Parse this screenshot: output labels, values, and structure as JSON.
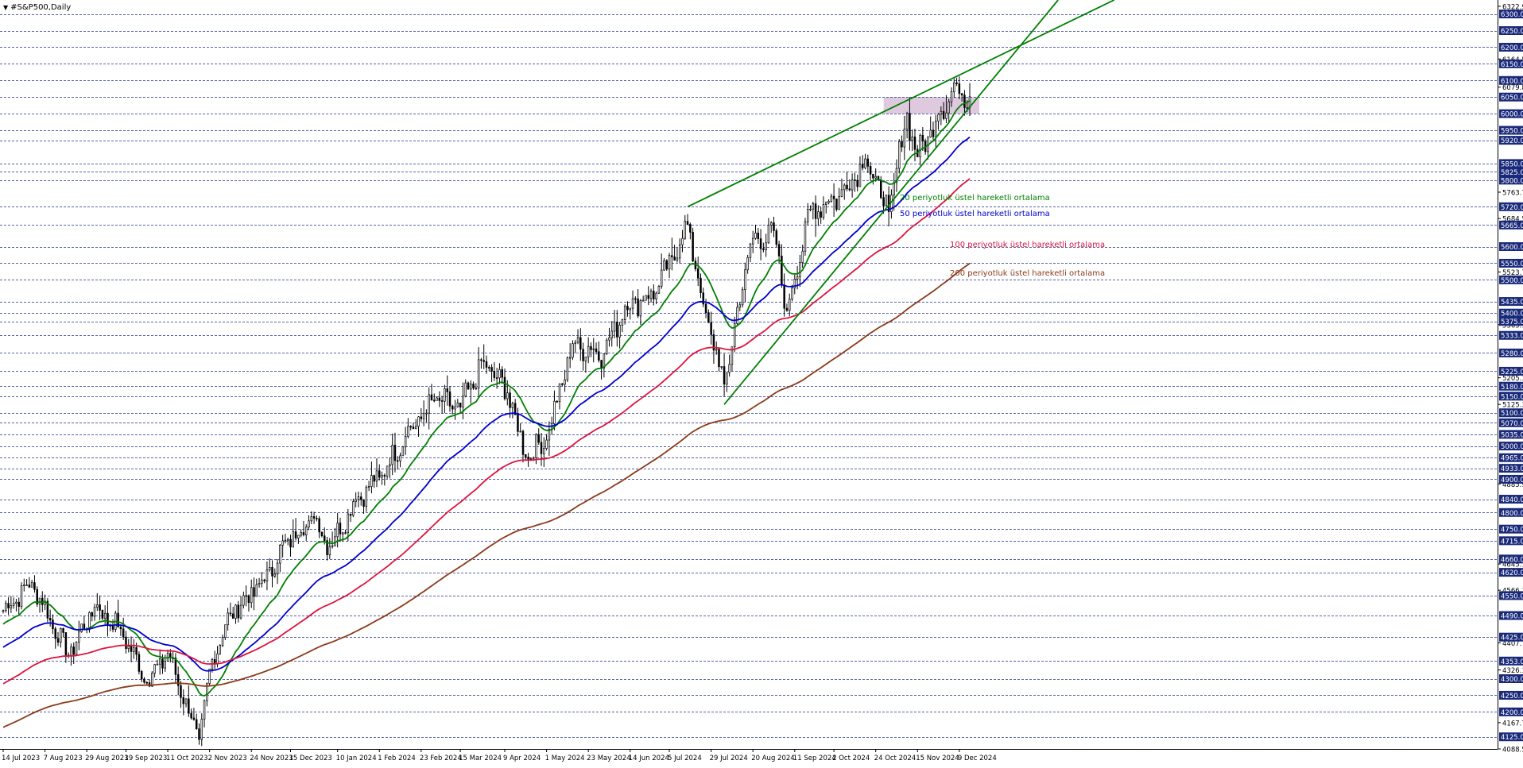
{
  "window": {
    "symbol_title": "#S&P500,Daily",
    "menu_icon": "triangle-down-icon"
  },
  "colors": {
    "background": "#ffffff",
    "grid": "#1f2f8f",
    "axis": "#000000",
    "candle": "#000000",
    "ema20": "#008000",
    "ema50": "#0000cd",
    "ema100": "#dc143c",
    "ema200": "#8b3a1a",
    "trendline": "#008000",
    "resistance_zone": "#d8bfd8",
    "price_box_bg": "#1a2a7a",
    "price_box_text": "#ffffff"
  },
  "chart_data": {
    "type": "candlestick",
    "symbol": "#S&P500",
    "timeframe": "Daily",
    "ylim": [
      4088.53,
      6322.93
    ],
    "grid": "horizontal-dashed",
    "x_ticks": [
      "14 Jul 2023",
      "7 Aug 2023",
      "29 Aug 2023",
      "19 Sep 2023",
      "11 Oct 2023",
      "2 Nov 2023",
      "24 Nov 2023",
      "15 Dec 2023",
      "10 Jan 2024",
      "1 Feb 2024",
      "23 Feb 2024",
      "15 Mar 2024",
      "9 Apr 2024",
      "1 May 2024",
      "23 May 2024",
      "14 Jun 2024",
      "5 Jul 2024",
      "29 Jul 2024",
      "20 Aug 2024",
      "11 Sep 2024",
      "2 Oct 2024",
      "24 Oct 2024",
      "15 Nov 2024",
      "9 Dec 2024"
    ],
    "y_ticks_plain": [
      "6322.93",
      "6164.53",
      "6079.82",
      "5763.73",
      "5684.53",
      "5523.73",
      "5365.13",
      "5205.33",
      "5125.33",
      "4885.93",
      "4645.13",
      "4566.13",
      "4407.73",
      "4326.13",
      "4167.73",
      "4088.53"
    ],
    "y_levels_boxed": [
      "6300.00",
      "6250.00",
      "6200.00",
      "6150.00",
      "6100.00",
      "6050.00",
      "6000.00",
      "5950.00",
      "5920.00",
      "5850.00",
      "5825.00",
      "5800.00",
      "5720.00",
      "5665.00",
      "5600.00",
      "5550.00",
      "5500.00",
      "5435.00",
      "5400.00",
      "5375.00",
      "5333.00",
      "5280.00",
      "5225.00",
      "5180.00",
      "5150.00",
      "5100.00",
      "5070.00",
      "5035.00",
      "5000.00",
      "4965.00",
      "4933.00",
      "4900.00",
      "4840.00",
      "4800.00",
      "4750.00",
      "4715.00",
      "4660.00",
      "4620.00",
      "4550.00",
      "4490.00",
      "4425.00",
      "4353.00",
      "4300.00",
      "4250.00",
      "4200.00",
      "4125.00"
    ],
    "closes_anchor": [
      {
        "date": "14 Jul 2023",
        "close": 4505
      },
      {
        "date": "31 Jul 2023",
        "close": 4589
      },
      {
        "date": "18 Aug 2023",
        "close": 4370
      },
      {
        "date": "1 Sep 2023",
        "close": 4515
      },
      {
        "date": "15 Sep 2023",
        "close": 4450
      },
      {
        "date": "29 Sep 2023",
        "close": 4288
      },
      {
        "date": "11 Oct 2023",
        "close": 4376
      },
      {
        "date": "27 Oct 2023",
        "close": 4117
      },
      {
        "date": "3 Nov 2023",
        "close": 4358
      },
      {
        "date": "14 Nov 2023",
        "close": 4495
      },
      {
        "date": "1 Dec 2023",
        "close": 4594
      },
      {
        "date": "14 Dec 2023",
        "close": 4719
      },
      {
        "date": "28 Dec 2023",
        "close": 4783
      },
      {
        "date": "5 Jan 2024",
        "close": 4697
      },
      {
        "date": "19 Jan 2024",
        "close": 4839
      },
      {
        "date": "1 Feb 2024",
        "close": 4906
      },
      {
        "date": "15 Feb 2024",
        "close": 5029
      },
      {
        "date": "1 Mar 2024",
        "close": 5137
      },
      {
        "date": "15 Mar 2024",
        "close": 5117
      },
      {
        "date": "28 Mar 2024",
        "close": 5254
      },
      {
        "date": "10 Apr 2024",
        "close": 5160
      },
      {
        "date": "19 Apr 2024",
        "close": 4967
      },
      {
        "date": "1 May 2024",
        "close": 5018
      },
      {
        "date": "15 May 2024",
        "close": 5308
      },
      {
        "date": "31 May 2024",
        "close": 5277
      },
      {
        "date": "12 Jun 2024",
        "close": 5421
      },
      {
        "date": "28 Jun 2024",
        "close": 5460
      },
      {
        "date": "16 Jul 2024",
        "close": 5667
      },
      {
        "date": "24 Jul 2024",
        "close": 5427
      },
      {
        "date": "5 Aug 2024",
        "close": 5186
      },
      {
        "date": "19 Aug 2024",
        "close": 5608
      },
      {
        "date": "30 Aug 2024",
        "close": 5648
      },
      {
        "date": "6 Sep 2024",
        "close": 5408
      },
      {
        "date": "19 Sep 2024",
        "close": 5713
      },
      {
        "date": "4 Oct 2024",
        "close": 5751
      },
      {
        "date": "18 Oct 2024",
        "close": 5864
      },
      {
        "date": "31 Oct 2024",
        "close": 5705
      },
      {
        "date": "11 Nov 2024",
        "close": 6001
      },
      {
        "date": "15 Nov 2024",
        "close": 5870
      },
      {
        "date": "27 Nov 2024",
        "close": 5998
      },
      {
        "date": "6 Dec 2024",
        "close": 6090
      },
      {
        "date": "13 Dec 2024",
        "close": 6051
      }
    ],
    "series": [
      {
        "name": "20 periyotluk üstel hareketli ortalama",
        "color": "#008000",
        "last_value": 6040
      },
      {
        "name": "50 periyotluk üstel hareketli ortalama",
        "color": "#0000cd",
        "last_value": 5930
      },
      {
        "name": "100 periyotluk üstel hareketli ortalama",
        "color": "#dc143c",
        "last_value": 5805
      },
      {
        "name": "200 periyotluk üstel hareketli ortalama",
        "color": "#8b3a1a",
        "last_value": 5550
      }
    ],
    "resistance_zone": {
      "from": 6000,
      "to": 6050
    },
    "trendlines": [
      {
        "points": [
          {
            "date": "16 Jul 2024",
            "value": 5720
          },
          {
            "date": "11 Nov 2024",
            "value": 6040
          }
        ]
      },
      {
        "points": [
          {
            "date": "5 Aug 2024",
            "value": 5125
          },
          {
            "date": "13 Dec 2024",
            "value": 6020
          }
        ]
      }
    ]
  }
}
